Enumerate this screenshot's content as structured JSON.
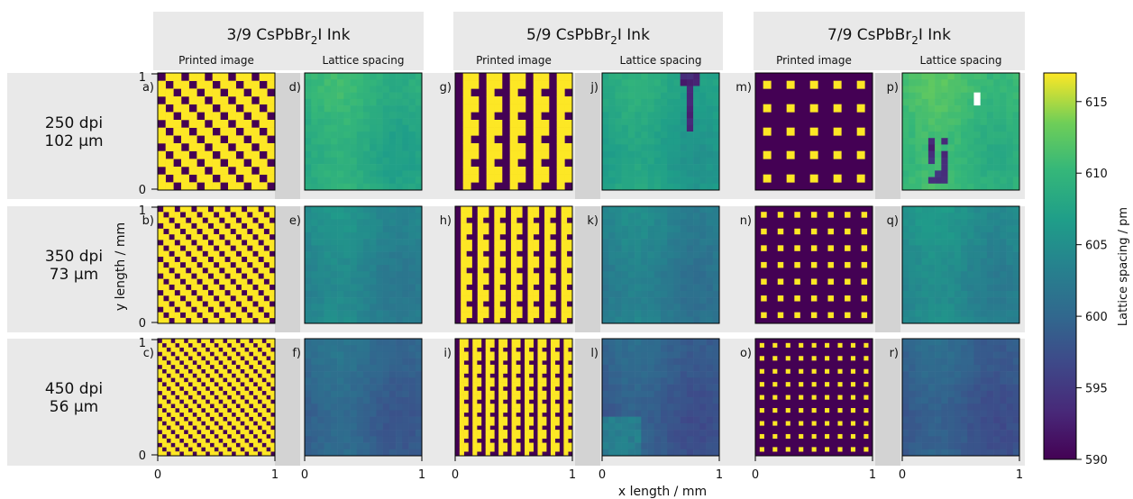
{
  "chart_data": {
    "type": "heatmap",
    "column_groups": [
      {
        "title_prefix": "3/9 CsPbBr",
        "sub": "2",
        "title_suffix": "I Ink"
      },
      {
        "title_prefix": "5/9 CsPbBr",
        "sub": "2",
        "title_suffix": "I Ink"
      },
      {
        "title_prefix": "7/9 CsPbBr",
        "sub": "2",
        "title_suffix": "I Ink"
      }
    ],
    "panel_titles": {
      "printed": "Printed image",
      "lattice": "Lattice spacing"
    },
    "rows": [
      {
        "dpi": "250 dpi",
        "size": "102 µm",
        "tiles": 5
      },
      {
        "dpi": "350 dpi",
        "size": "73 µm",
        "tiles": 7
      },
      {
        "dpi": "450 dpi",
        "size": "56 µm",
        "tiles": 9
      }
    ],
    "panel_letters": [
      "a)",
      "b)",
      "c)",
      "d)",
      "e)",
      "f)",
      "g)",
      "h)",
      "i)",
      "j)",
      "k)",
      "l)",
      "m)",
      "n)",
      "o)",
      "p)",
      "q)",
      "r)"
    ],
    "fill_fraction": [
      3,
      5,
      7
    ],
    "fill_denominator": 9,
    "lattice_mean_pm": [
      [
        609.0,
        604.0,
        600.0
      ],
      [
        607.5,
        603.0,
        599.0
      ],
      [
        610.5,
        604.5,
        599.0
      ]
    ],
    "xlabel": "x length / mm",
    "ylabel": "y length / mm",
    "xticks": [
      "0",
      "1"
    ],
    "yticks": [
      "0",
      "1"
    ],
    "colorbar": {
      "label": "Lattice spacing / pm",
      "min": 590,
      "max": 617,
      "ticks": [
        590,
        595,
        600,
        605,
        610,
        615
      ]
    },
    "colors": {
      "ink_yellow": "#fde725",
      "ink_dark": "#440154",
      "band_bg": "#e9e9e9",
      "gap_bg": "#d3d3d3"
    }
  }
}
